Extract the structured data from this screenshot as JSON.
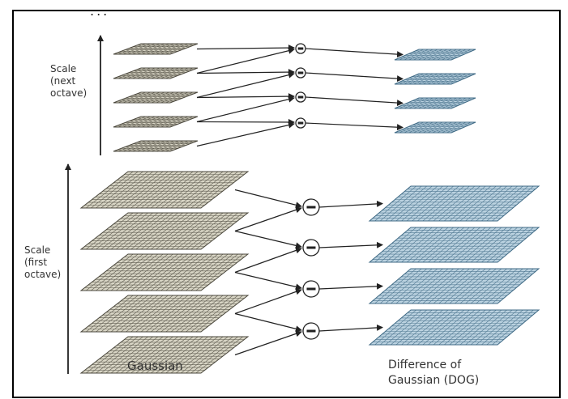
{
  "ellipsis": "...",
  "labels": {
    "scale_next_octave": "Scale\n(next\noctave)",
    "scale_first_octave": "Scale\n(first\noctave)",
    "gaussian": "Gaussian",
    "dog": "Difference of\nGaussian (DOG)"
  },
  "operator_symbol": "minus",
  "colors": {
    "gaussian_fill": "#d9d6c6",
    "gaussian_grid": "#4a473c",
    "dog_fill": "#bcd3e1",
    "dog_grid": "#3f6a85",
    "line": "#222222",
    "frame": "#000000"
  },
  "octaves": [
    {
      "name": "next",
      "gaussian_layers": 5,
      "dog_layers": 4,
      "subtractors": 4
    },
    {
      "name": "first",
      "gaussian_layers": 5,
      "dog_layers": 4,
      "subtractors": 4
    }
  ]
}
